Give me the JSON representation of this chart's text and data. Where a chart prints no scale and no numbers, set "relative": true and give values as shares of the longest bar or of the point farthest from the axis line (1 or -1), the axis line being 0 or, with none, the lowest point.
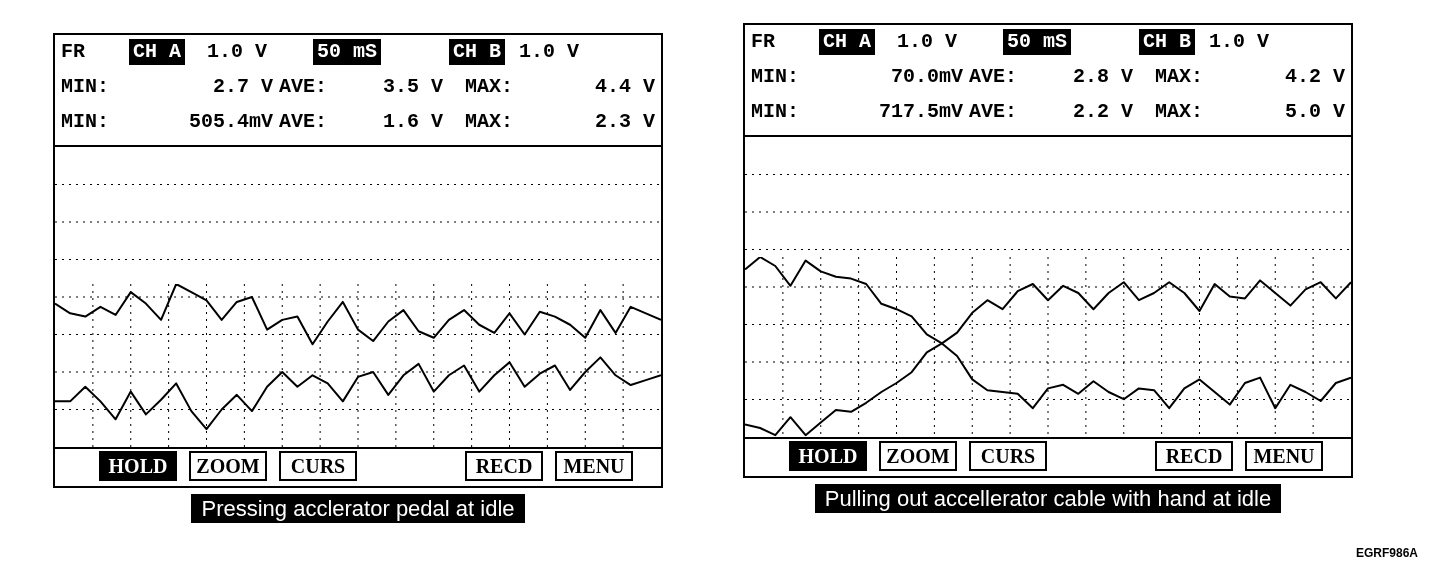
{
  "chart_data": [
    {
      "type": "line",
      "title": "Pressing acclerator pedal at idle",
      "relative": true,
      "grid": true,
      "tick_labels": false,
      "annotations": [
        "FR",
        "CH A",
        "1.0 V",
        "50 mS",
        "CH B",
        "1.0 V",
        "MIN:",
        "2.7 V",
        "AVE:",
        "3.5 V",
        "MAX:",
        "4.4 V",
        "MIN:",
        "505.4mV",
        "AVE:",
        "1.6 V",
        "MAX:",
        "2.3 V",
        "HOLD",
        "ZOOM",
        "CURS",
        "RECD",
        "MENU"
      ],
      "categories": [
        null,
        null,
        null,
        null,
        null,
        null,
        null,
        null,
        null,
        null,
        null,
        null,
        null,
        null,
        null,
        null,
        null,
        null,
        null,
        null,
        null,
        null,
        null,
        null,
        null,
        null,
        null,
        null,
        null,
        null,
        null,
        null,
        null,
        null,
        null,
        null,
        null,
        null,
        null,
        null,
        null
      ],
      "series": [
        {
          "color": "#000000",
          "values": [
            0.88,
            0.82,
            0.8,
            0.86,
            0.81,
            0.95,
            0.88,
            0.78,
            1.0,
            0.95,
            0.9,
            0.78,
            0.89,
            0.92,
            0.72,
            0.78,
            0.8,
            0.63,
            0.77,
            0.89,
            0.72,
            0.65,
            0.77,
            0.84,
            0.71,
            0.67,
            0.78,
            0.84,
            0.75,
            0.7,
            0.82,
            0.69,
            0.83,
            0.8,
            0.75,
            0.67,
            0.84,
            0.7,
            0.86,
            0.82,
            0.78
          ]
        },
        {
          "color": "#000000",
          "values": [
            0.28,
            0.28,
            0.37,
            0.28,
            0.17,
            0.34,
            0.2,
            0.29,
            0.39,
            0.22,
            0.11,
            0.23,
            0.32,
            0.22,
            0.37,
            0.46,
            0.37,
            0.44,
            0.39,
            0.28,
            0.43,
            0.46,
            0.32,
            0.44,
            0.51,
            0.34,
            0.44,
            0.5,
            0.34,
            0.44,
            0.52,
            0.37,
            0.45,
            0.5,
            0.35,
            0.46,
            0.55,
            0.44,
            0.38,
            0.41,
            0.44
          ]
        }
      ]
    },
    {
      "type": "line",
      "title": "Pulling out accellerator cable with hand at idle",
      "relative": true,
      "grid": true,
      "tick_labels": false,
      "annotations": [
        "FR",
        "CH A",
        "1.0 V",
        "50 mS",
        "CH B",
        "1.0 V",
        "MIN:",
        "70.0mV",
        "AVE:",
        "2.8 V",
        "MAX:",
        "4.2 V",
        "MIN:",
        "717.5mV",
        "AVE:",
        "2.2 V",
        "MAX:",
        "5.0 V",
        "HOLD",
        "ZOOM",
        "CURS",
        "RECD",
        "MENU",
        "EGRF986A"
      ],
      "categories": [
        null,
        null,
        null,
        null,
        null,
        null,
        null,
        null,
        null,
        null,
        null,
        null,
        null,
        null,
        null,
        null,
        null,
        null,
        null,
        null,
        null,
        null,
        null,
        null,
        null,
        null,
        null,
        null,
        null,
        null,
        null,
        null,
        null,
        null,
        null,
        null,
        null,
        null,
        null,
        null,
        null
      ],
      "series": [
        {
          "color": "#000000",
          "values": [
            0.93,
            1.0,
            0.95,
            0.84,
            0.98,
            0.92,
            0.89,
            0.88,
            0.85,
            0.74,
            0.71,
            0.67,
            0.57,
            0.52,
            0.45,
            0.32,
            0.26,
            0.25,
            0.24,
            0.16,
            0.27,
            0.29,
            0.24,
            0.31,
            0.25,
            0.21,
            0.27,
            0.26,
            0.16,
            0.27,
            0.32,
            0.25,
            0.18,
            0.3,
            0.33,
            0.16,
            0.29,
            0.25,
            0.2,
            0.3,
            0.33
          ]
        },
        {
          "color": "#000000",
          "values": [
            0.07,
            0.05,
            0.01,
            0.11,
            0.01,
            0.08,
            0.15,
            0.14,
            0.19,
            0.25,
            0.3,
            0.36,
            0.47,
            0.52,
            0.58,
            0.69,
            0.76,
            0.71,
            0.81,
            0.85,
            0.76,
            0.84,
            0.8,
            0.71,
            0.8,
            0.86,
            0.76,
            0.8,
            0.86,
            0.8,
            0.7,
            0.85,
            0.78,
            0.77,
            0.87,
            0.8,
            0.73,
            0.82,
            0.86,
            0.77,
            0.86
          ]
        }
      ]
    }
  ]
}
